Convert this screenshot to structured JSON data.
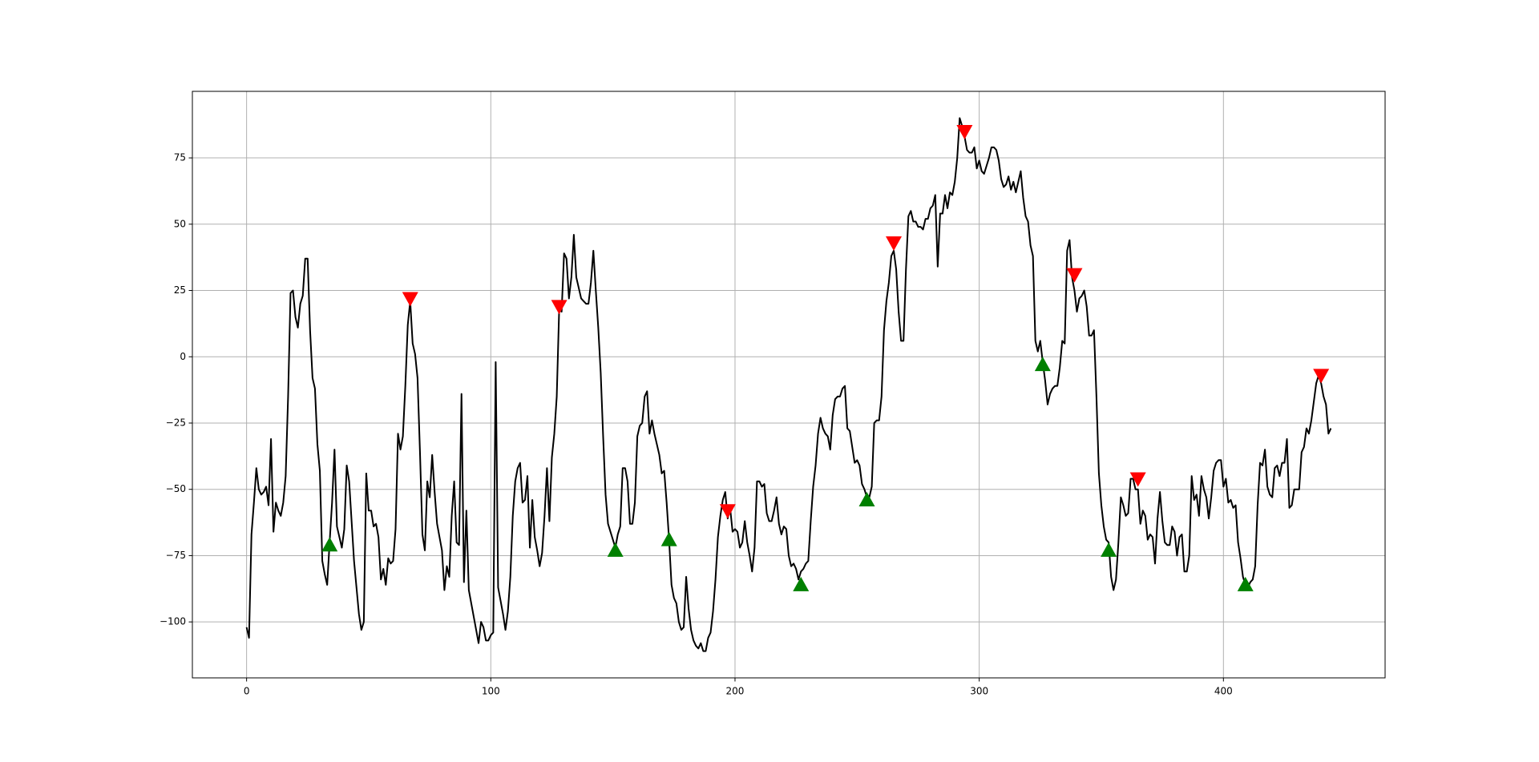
{
  "chart_data": {
    "type": "line",
    "xlim": [
      -22.2,
      466.2
    ],
    "ylim": [
      -121.1,
      100.1
    ],
    "xticks": [
      0,
      100,
      200,
      300,
      400
    ],
    "yticks": [
      {
        "value": -100,
        "label": "−100"
      },
      {
        "value": -75,
        "label": "−75"
      },
      {
        "value": -50,
        "label": "−50"
      },
      {
        "value": -25,
        "label": "−25"
      },
      0,
      25,
      50,
      75
    ],
    "grid": true,
    "series": [
      {
        "type": "line",
        "color": "#000000",
        "x": [
          0,
          1,
          2,
          3,
          4,
          5,
          6,
          7,
          8,
          9,
          10,
          11,
          12,
          13,
          14,
          15,
          16,
          17,
          18,
          19,
          20,
          21,
          22,
          23,
          24,
          25,
          26,
          27,
          28,
          29,
          30,
          31,
          32,
          33,
          34,
          35,
          36,
          37,
          38,
          39,
          40,
          41,
          42,
          43,
          44,
          45,
          46,
          47,
          48,
          49,
          50,
          51,
          52,
          53,
          54,
          55,
          56,
          57,
          58,
          59,
          60,
          61,
          62,
          63,
          64,
          65,
          66,
          67,
          68,
          69,
          70,
          71,
          72,
          73,
          74,
          75,
          76,
          77,
          78,
          79,
          80,
          81,
          82,
          83,
          84,
          85,
          86,
          87,
          88,
          89,
          90,
          91,
          92,
          93,
          94,
          95,
          96,
          97,
          98,
          99,
          100,
          101,
          102,
          103,
          104,
          105,
          106,
          107,
          108,
          109,
          110,
          111,
          112,
          113,
          114,
          115,
          116,
          117,
          118,
          119,
          120,
          121,
          122,
          123,
          124,
          125,
          126,
          127,
          128,
          129,
          130,
          131,
          132,
          133,
          134,
          135,
          136,
          137,
          138,
          139,
          140,
          141,
          142,
          143,
          144,
          145,
          146,
          147,
          148,
          149,
          150,
          151,
          152,
          153,
          154,
          155,
          156,
          157,
          158,
          159,
          160,
          161,
          162,
          163,
          164,
          165,
          166,
          167,
          168,
          169,
          170,
          171,
          172,
          173,
          174,
          175,
          176,
          177,
          178,
          179,
          180,
          181,
          182,
          183,
          184,
          185,
          186,
          187,
          188,
          189,
          190,
          191,
          192,
          193,
          194,
          195,
          196,
          197,
          198,
          199,
          200,
          201,
          202,
          203,
          204,
          205,
          206,
          207,
          208,
          209,
          210,
          211,
          212,
          213,
          214,
          215,
          216,
          217,
          218,
          219,
          220,
          221,
          222,
          223,
          224,
          225,
          226,
          227,
          228,
          229,
          230,
          231,
          232,
          233,
          234,
          235,
          236,
          237,
          238,
          239,
          240,
          241,
          242,
          243,
          244,
          245,
          246,
          247,
          248,
          249,
          250,
          251,
          252,
          253,
          254,
          255,
          256,
          257,
          258,
          259,
          260,
          261,
          262,
          263,
          264,
          265,
          266,
          267,
          268,
          269,
          270,
          271,
          272,
          273,
          274,
          275,
          276,
          277,
          278,
          279,
          280,
          281,
          282,
          283,
          284,
          285,
          286,
          287,
          288,
          289,
          290,
          291,
          292,
          293,
          294,
          295,
          296,
          297,
          298,
          299,
          300,
          301,
          302,
          303,
          304,
          305,
          306,
          307,
          308,
          309,
          310,
          311,
          312,
          313,
          314,
          315,
          316,
          317,
          318,
          319,
          320,
          321,
          322,
          323,
          324,
          325,
          326,
          327,
          328,
          329,
          330,
          331,
          332,
          333,
          334,
          335,
          336,
          337,
          338,
          339,
          340,
          341,
          342,
          343,
          344,
          345,
          346,
          347,
          348,
          349,
          350,
          351,
          352,
          353,
          354,
          355,
          356,
          357,
          358,
          359,
          360,
          361,
          362,
          363,
          364,
          365,
          366,
          367,
          368,
          369,
          370,
          371,
          372,
          373,
          374,
          375,
          376,
          377,
          378,
          379,
          380,
          381,
          382,
          383,
          384,
          385,
          386,
          387,
          388,
          389,
          390,
          391,
          392,
          393,
          394,
          395,
          396,
          397,
          398,
          399,
          400,
          401,
          402,
          403,
          404,
          405,
          406,
          407,
          408,
          409,
          410,
          411,
          412,
          413,
          414,
          415,
          416,
          417,
          418,
          419,
          420,
          421,
          422,
          423,
          424,
          425,
          426,
          427,
          428,
          429,
          430,
          431,
          432,
          433,
          434,
          435,
          436,
          437,
          438,
          439,
          440,
          441,
          442,
          443,
          444
        ],
        "values": [
          -102,
          -106,
          -67,
          -55,
          -42,
          -50,
          -52,
          -51,
          -49,
          -56,
          -31,
          -66,
          -55,
          -58,
          -60,
          -55,
          -45,
          -15,
          24,
          25,
          15,
          11,
          20,
          23,
          37,
          37,
          10,
          -8,
          -12,
          -33,
          -43,
          -77,
          -82,
          -86,
          -70,
          -55,
          -35,
          -64,
          -68,
          -72,
          -65,
          -41,
          -47,
          -62,
          -77,
          -87,
          -97,
          -103,
          -100,
          -44,
          -58,
          -58,
          -64,
          -63,
          -68,
          -84,
          -80,
          -86,
          -76,
          -78,
          -77,
          -65,
          -29,
          -35,
          -30,
          -11,
          12,
          21,
          5,
          1,
          -8,
          -36,
          -67,
          -73,
          -47,
          -53,
          -37,
          -51,
          -63,
          -68,
          -73,
          -88,
          -79,
          -83,
          -60,
          -47,
          -70,
          -71,
          -14,
          -85,
          -58,
          -88,
          -93,
          -98,
          -103,
          -108,
          -100,
          -102,
          -107,
          -107,
          -105,
          -104,
          -2,
          -87,
          -92,
          -97,
          -103,
          -96,
          -83,
          -60,
          -47,
          -42,
          -40,
          -55,
          -54,
          -45,
          -72,
          -54,
          -68,
          -73,
          -79,
          -74,
          -60,
          -42,
          -62,
          -38,
          -29,
          -15,
          18,
          17,
          39,
          37,
          22,
          30,
          46,
          30,
          26,
          22,
          21,
          20,
          20,
          28,
          40,
          25,
          11,
          -6,
          -30,
          -52,
          -63,
          -66,
          -69,
          -72,
          -67,
          -64,
          -42,
          -42,
          -47,
          -63,
          -63,
          -55,
          -30,
          -26,
          -25,
          -15,
          -13,
          -29,
          -24,
          -29,
          -33,
          -37,
          -44,
          -43,
          -55,
          -69,
          -86,
          -91,
          -93,
          -100,
          -103,
          -102,
          -83,
          -95,
          -103,
          -107,
          -109,
          -110,
          -108,
          -111,
          -111,
          -106,
          -104,
          -96,
          -84,
          -68,
          -60,
          -54,
          -51,
          -61,
          -57,
          -66,
          -65,
          -66,
          -72,
          -70,
          -62,
          -70,
          -75,
          -81,
          -72,
          -47,
          -47,
          -49,
          -48,
          -59,
          -62,
          -62,
          -58,
          -53,
          -63,
          -67,
          -64,
          -65,
          -75,
          -79,
          -78,
          -80,
          -84,
          -81,
          -80,
          -78,
          -77,
          -62,
          -49,
          -41,
          -29,
          -23,
          -27,
          -29,
          -30,
          -35,
          -22,
          -16,
          -15,
          -15,
          -12,
          -11,
          -27,
          -28,
          -34,
          -40,
          -39,
          -41,
          -48,
          -50,
          -53,
          -53,
          -49,
          -25,
          -24,
          -24,
          -15,
          10,
          21,
          28,
          38,
          40,
          33,
          17,
          6,
          6,
          33,
          53,
          55,
          51,
          51,
          49,
          49,
          48,
          52,
          52,
          56,
          57,
          61,
          34,
          54,
          54,
          61,
          56,
          62,
          61,
          66,
          75,
          90,
          87,
          83,
          78,
          77,
          77,
          79,
          71,
          74,
          70,
          69,
          72,
          75,
          79,
          79,
          78,
          74,
          67,
          64,
          65,
          68,
          63,
          66,
          62,
          66,
          70,
          60,
          53,
          51,
          42,
          38,
          6,
          2,
          6,
          -2,
          -9,
          -18,
          -14,
          -12,
          -11,
          -11,
          -4,
          6,
          5,
          40,
          44,
          30,
          25,
          17,
          22,
          23,
          25,
          19,
          8,
          8,
          10,
          -15,
          -44,
          -56,
          -64,
          -69,
          -70,
          -83,
          -88,
          -84,
          -70,
          -53,
          -56,
          -60,
          -59,
          -46,
          -46,
          -50,
          -50,
          -63,
          -58,
          -60,
          -69,
          -67,
          -68,
          -78,
          -61,
          -51,
          -62,
          -70,
          -71,
          -71,
          -64,
          -66,
          -75,
          -68,
          -67,
          -81,
          -81,
          -75,
          -45,
          -54,
          -52,
          -60,
          -45,
          -50,
          -53,
          -61,
          -53,
          -43,
          -40,
          -39,
          -39,
          -49,
          -46,
          -55,
          -54,
          -57,
          -56,
          -70,
          -76,
          -83,
          -86,
          -87,
          -85,
          -84,
          -79,
          -56,
          -40,
          -41,
          -35,
          -49,
          -52,
          -53,
          -42,
          -41,
          -45,
          -40,
          -40,
          -31,
          -57,
          -56,
          -50,
          -50,
          -50,
          -36,
          -34,
          -27,
          -29,
          -24,
          -17,
          -10,
          -7,
          -10,
          -15,
          -18,
          -29,
          -27
        ]
      },
      {
        "type": "scatter",
        "marker": "triangle-down",
        "color": "#ff0000",
        "x": [
          67,
          128,
          197,
          265,
          294,
          339,
          365,
          440
        ],
        "values": [
          22,
          19,
          -58,
          43,
          85,
          31,
          -46,
          -7
        ]
      },
      {
        "type": "scatter",
        "marker": "triangle-up",
        "color": "#008000",
        "x": [
          34,
          151,
          173,
          227,
          254,
          326,
          353,
          409
        ],
        "values": [
          -71,
          -73,
          -69,
          -86,
          -54,
          -3,
          -73,
          -86
        ]
      }
    ]
  }
}
